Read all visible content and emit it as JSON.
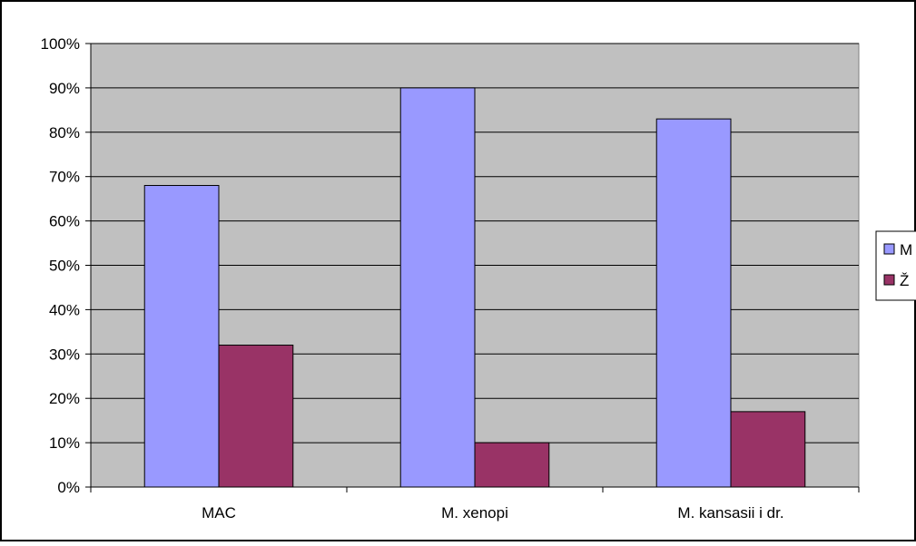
{
  "chart_data": {
    "type": "bar",
    "categories": [
      "MAC",
      "M. xenopi",
      "M. kansasii i dr."
    ],
    "series": [
      {
        "name": "M",
        "values": [
          68,
          90,
          83
        ],
        "color": "#9999ff"
      },
      {
        "name": "Ž",
        "values": [
          32,
          10,
          17
        ],
        "color": "#993366"
      }
    ],
    "yticks": [
      "0%",
      "10%",
      "20%",
      "30%",
      "40%",
      "50%",
      "60%",
      "70%",
      "80%",
      "90%",
      "100%"
    ],
    "ylim": [
      0,
      100
    ],
    "grid": true,
    "plot_background": "#c0c0c0",
    "legend_position": "right"
  }
}
